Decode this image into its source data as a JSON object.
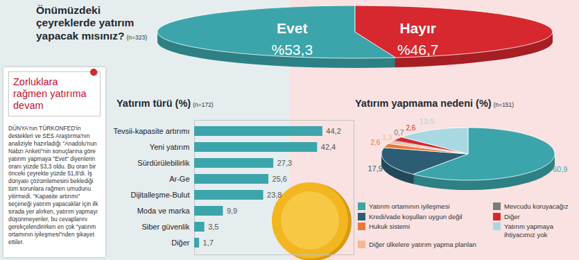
{
  "chart_data": [
    {
      "type": "pie",
      "title": "Önümüzdeki çeyreklerde yatırım yapacak mısınız?",
      "subtitle": "(n=323)",
      "categories": [
        "Evet",
        "Hayır"
      ],
      "values": [
        53.3,
        46.7
      ],
      "value_labels": [
        "%53,3",
        "%46,7"
      ],
      "colors": [
        "#3ba5ab",
        "#d7282f"
      ],
      "data_labels": true
    },
    {
      "type": "bar",
      "orientation": "horizontal",
      "title": "Yatırım türü (%)",
      "subtitle": "(n=172)",
      "categories": [
        "Tevsii-kapasite artırımı",
        "Yeni yatırım",
        "Sürdürülebilirlik",
        "Ar-Ge",
        "Dijitalleşme-Bulut",
        "Moda ve marka",
        "Siber güvenlik",
        "Diğer"
      ],
      "values": [
        44.2,
        42.4,
        27.3,
        25.6,
        23.8,
        9.9,
        3.5,
        1.7
      ],
      "value_labels": [
        "44,2",
        "42,4",
        "27,3",
        "25,6",
        "23,8",
        "9,9",
        "3,5",
        "1,7"
      ],
      "color": "#3ba5ab",
      "xlim": [
        0,
        55
      ],
      "tick_labels": "y",
      "data_labels": true
    },
    {
      "type": "pie",
      "title": "Yatırım yapmama nedeni (%)",
      "subtitle": "(n=151)",
      "categories": [
        "Yatırım ortamının iyileşmesi",
        "Kredi/vade koşulları uygun değil",
        "Hukuk sistemi",
        "Diğer ülkelere yatırım yapma planları",
        "Mevcudu koruyacağız",
        "Diğer",
        "Yatırım yapmaya ihtiyacımız yok"
      ],
      "values": [
        60.9,
        17.9,
        2.6,
        1.3,
        0.7,
        2.6,
        13.9
      ],
      "value_labels": [
        "60,9",
        "17,9",
        "2,6",
        "1,3",
        "0,7",
        "2,6",
        "13,9"
      ],
      "colors": [
        "#3ba5ab",
        "#2d5d74",
        "#e8793a",
        "#f5b895",
        "#7b7b7b",
        "#d7282f",
        "#a8d8e2"
      ],
      "data_labels": true,
      "legend": "bottom"
    }
  ],
  "sidebar": {
    "title": "Zorluklara rağmen yatırıma devam",
    "text": "DÜNYA'nın TÜRKONFED'in destekleri ve SES Araştırma'nın analiziyle hazırladığı \"Anadolu'nun Nabzı Anketi\"nin sonuçlarına göre yatırım yapmaya \"Evet\" diyenlerin oranı yüzde 53,3 oldu. Bu oran bir önceki çeyrekte yüzde 51,8'di. İş dünyası çözümlemesini beklediği tüm sorunlara rağmen umudunu yitirmedi. \"Kapasite artırımı\" seçeneği yatırım yapacaklar için ilk sırada yer alırken, yatırım yapmayı düşünmeyenler, bu cevaplarını gerekçelendirirken en çok \"yatırım ortamının iyileşmesi\"nden şikayet ettiler."
  }
}
